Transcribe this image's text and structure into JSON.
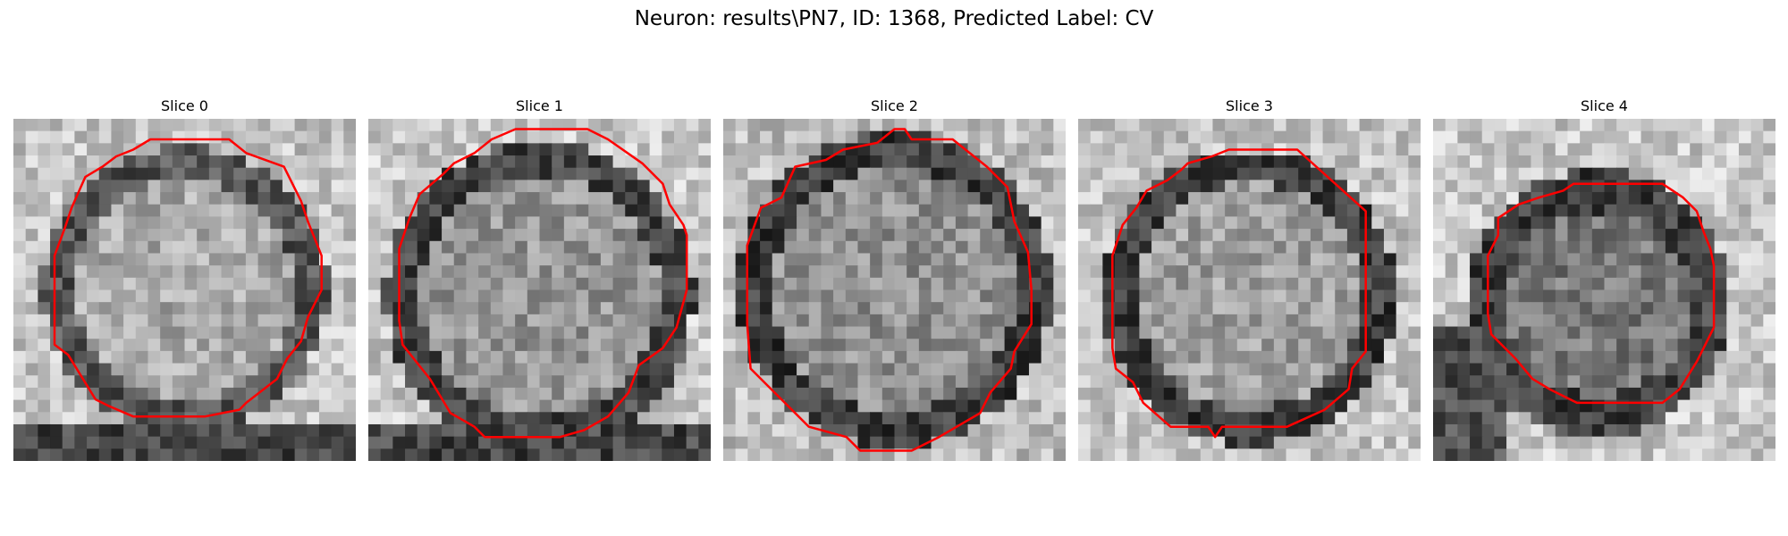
{
  "figure": {
    "title": "Neuron: results\\PN7, ID: 1368, Predicted Label: CV"
  },
  "panels": [
    {
      "title": "Slice 0",
      "contour_color": "#ff0000"
    },
    {
      "title": "Slice 1",
      "contour_color": "#ff0000"
    },
    {
      "title": "Slice 2",
      "contour_color": "#ff0000"
    },
    {
      "title": "Slice 3",
      "contour_color": "#ff0000"
    },
    {
      "title": "Slice 4",
      "contour_color": "#ff0000"
    }
  ]
}
